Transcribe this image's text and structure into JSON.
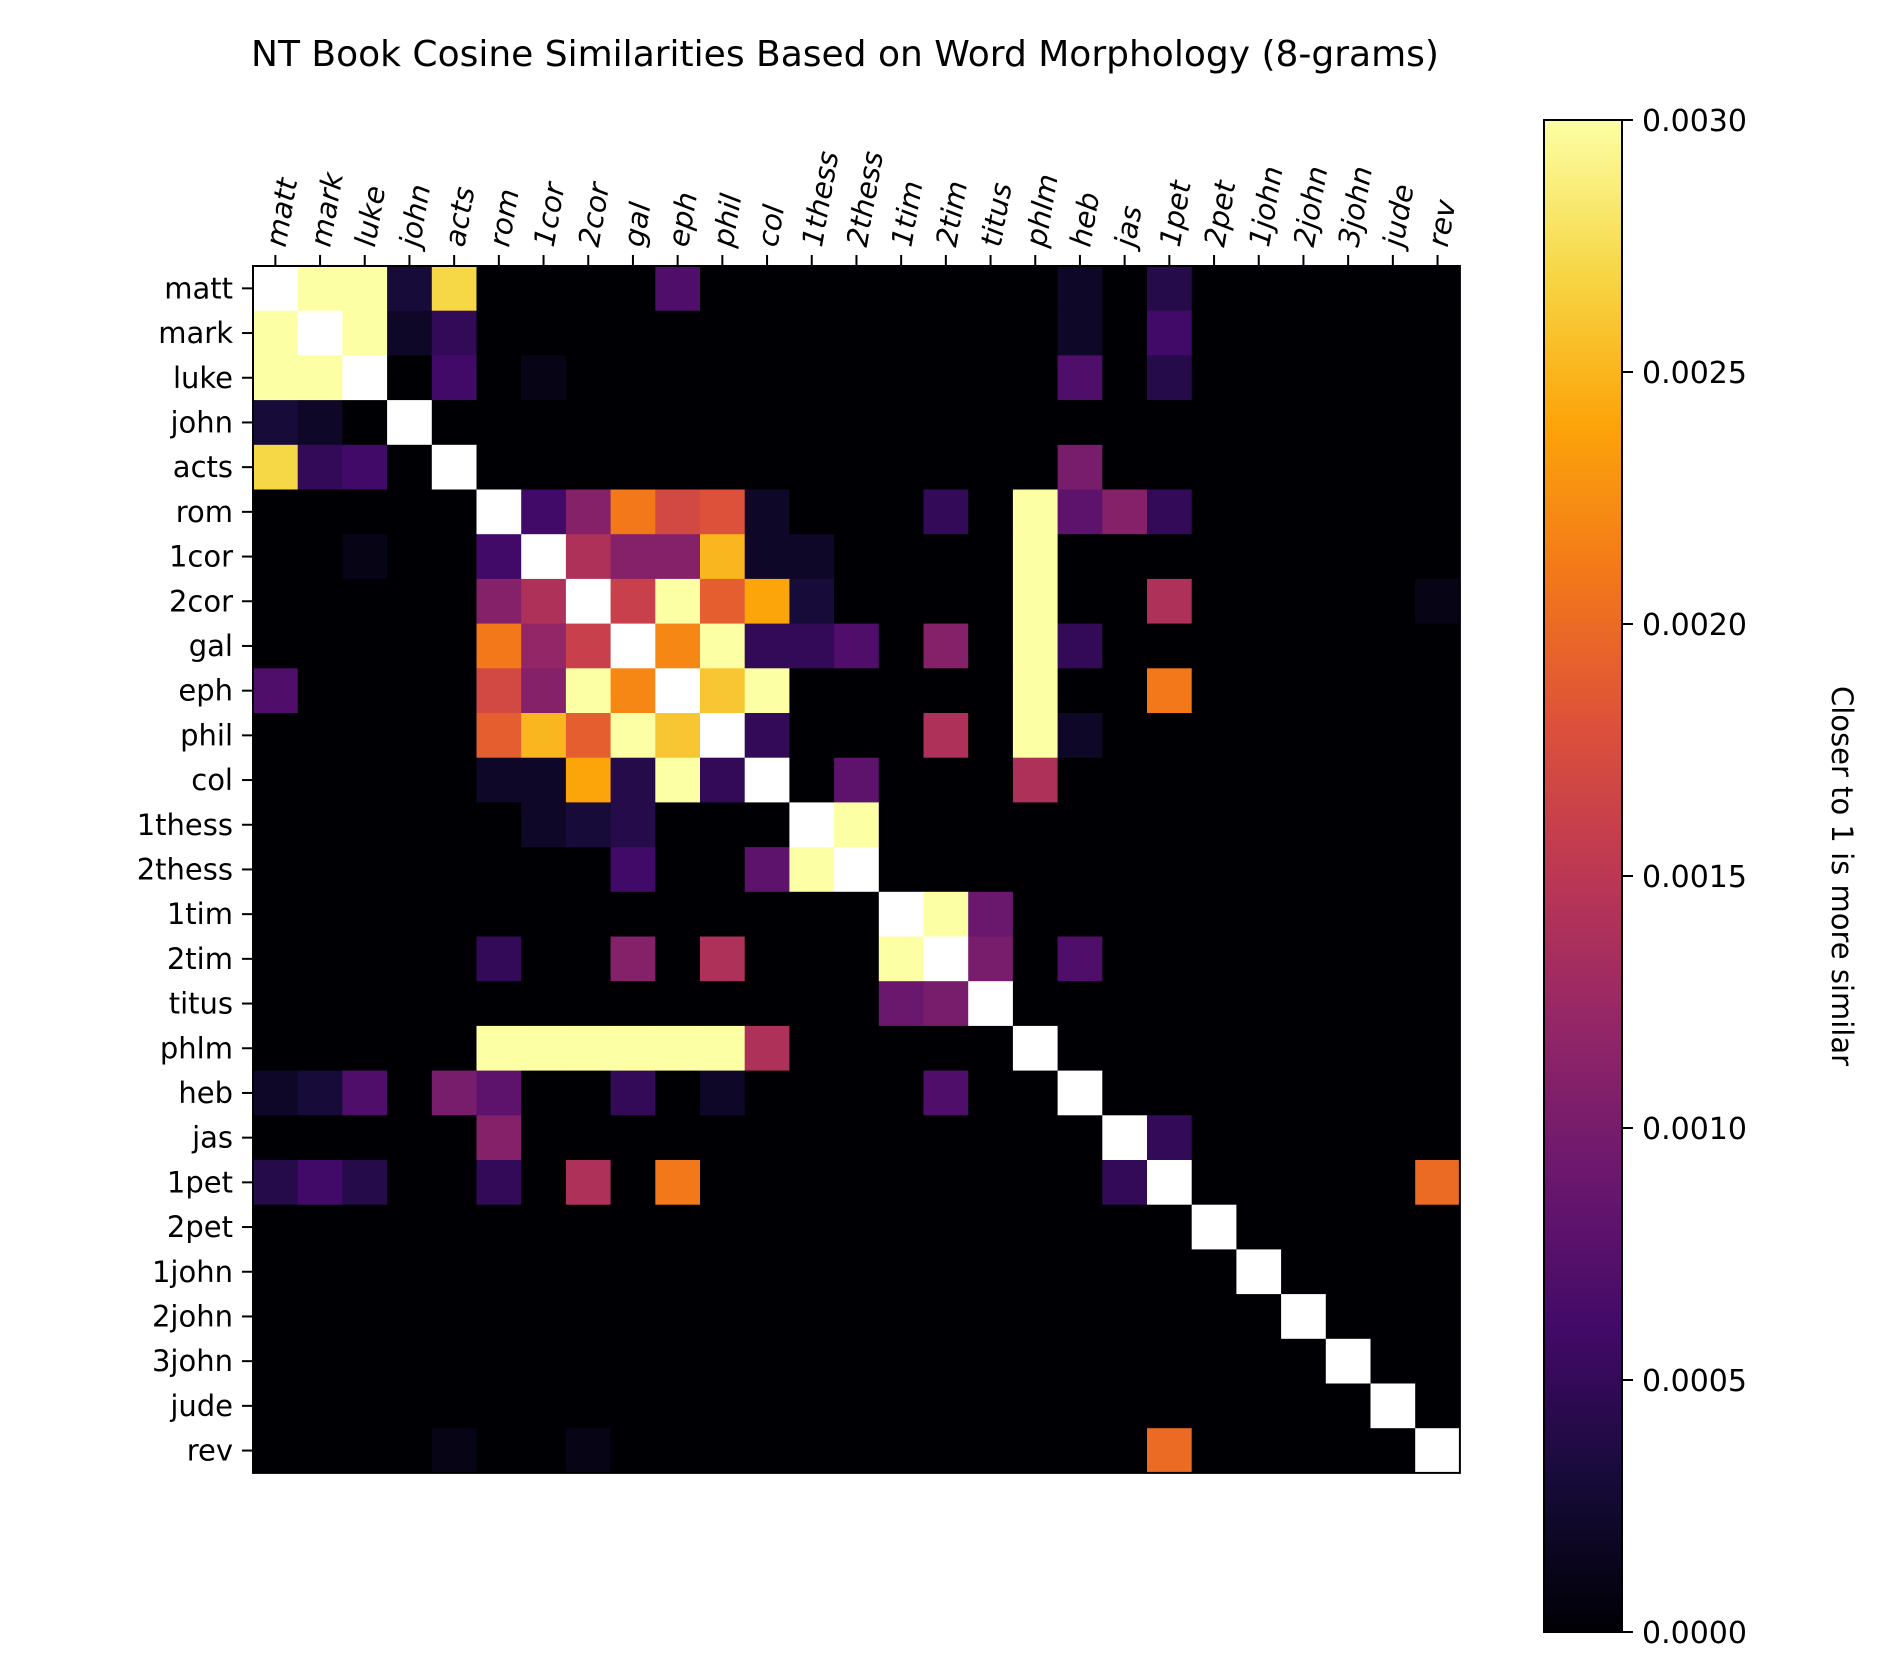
{
  "chart_data": {
    "type": "heatmap",
    "title": "NT Book Cosine Similarities Based on Word Morphology (8-grams)",
    "colorbar_label": "Closer to 1 is more similar",
    "colormap": "inferno",
    "value_range": [
      0,
      0.003
    ],
    "colorbar_ticks": [
      "0.0000",
      "0.0005",
      "0.0010",
      "0.0015",
      "0.0020",
      "0.0025",
      "0.0030"
    ],
    "x_tick_position": "top",
    "x_tick_style": "italic, rotated",
    "books": [
      "matt",
      "mark",
      "luke",
      "john",
      "acts",
      "rom",
      "1cor",
      "2cor",
      "gal",
      "eph",
      "phil",
      "col",
      "1thess",
      "2thess",
      "1tim",
      "2tim",
      "titus",
      "phlm",
      "heb",
      "jas",
      "1pet",
      "2pet",
      "1john",
      "2john",
      "3john",
      "jude",
      "rev"
    ],
    "values": [
      [
        0.01,
        0.003,
        0.003,
        0.0003,
        0.0027,
        0.0,
        0.0,
        0.0,
        0.0,
        0.0007,
        0.0,
        0.0,
        0.0,
        0.0,
        0.0,
        0.0,
        0.0,
        0.0,
        0.0002,
        0.0,
        0.0004,
        0.0,
        0.0,
        0.0,
        0.0,
        0.0,
        0.0
      ],
      [
        0.003,
        0.01,
        0.003,
        0.0002,
        0.0005,
        0.0,
        0.0,
        0.0,
        0.0,
        0.0,
        0.0,
        0.0,
        0.0,
        0.0,
        0.0,
        0.0,
        0.0,
        0.0,
        0.0002,
        0.0,
        0.0006,
        0.0,
        0.0,
        0.0,
        0.0,
        0.0,
        0.0
      ],
      [
        0.003,
        0.003,
        0.01,
        0.0,
        0.0006,
        0.0,
        0.0001,
        0.0,
        0.0,
        0.0,
        0.0,
        0.0,
        0.0,
        0.0,
        0.0,
        0.0,
        0.0,
        0.0,
        0.0007,
        0.0,
        0.0004,
        0.0,
        0.0,
        0.0,
        0.0,
        0.0,
        0.0
      ],
      [
        0.0003,
        0.0002,
        0.0,
        0.01,
        0.0,
        0.0,
        0.0,
        0.0,
        0.0,
        0.0,
        0.0,
        0.0,
        0.0,
        0.0,
        0.0,
        0.0,
        0.0,
        0.0,
        0.0,
        0.0,
        0.0,
        0.0,
        0.0,
        0.0,
        0.0,
        0.0,
        0.0
      ],
      [
        0.0027,
        0.0005,
        0.0006,
        0.0,
        0.01,
        0.0,
        0.0,
        0.0,
        0.0,
        0.0,
        0.0,
        0.0,
        0.0,
        0.0,
        0.0,
        0.0,
        0.0,
        0.0,
        0.001,
        0.0,
        0.0,
        0.0,
        0.0,
        0.0,
        0.0,
        0.0,
        0.0
      ],
      [
        0.0,
        0.0,
        0.0,
        0.0,
        0.0,
        0.01,
        0.0006,
        0.0011,
        0.0021,
        0.0017,
        0.0018,
        0.0002,
        0.0,
        0.0,
        0.0,
        0.0005,
        0.0,
        0.003,
        0.0008,
        0.0011,
        0.0005,
        0.0,
        0.0,
        0.0,
        0.0,
        0.0,
        0.0
      ],
      [
        0.0,
        0.0,
        0.0001,
        0.0,
        0.0,
        0.0006,
        0.01,
        0.0014,
        0.0011,
        0.0011,
        0.0025,
        0.0002,
        0.0002,
        0.0,
        0.0,
        0.0,
        0.0,
        0.003,
        0.0,
        0.0,
        0.0,
        0.0,
        0.0,
        0.0,
        0.0,
        0.0,
        0.0
      ],
      [
        0.0,
        0.0,
        0.0,
        0.0,
        0.0,
        0.0011,
        0.0014,
        0.01,
        0.0016,
        0.003,
        0.0019,
        0.0024,
        0.0003,
        0.0,
        0.0,
        0.0,
        0.0,
        0.003,
        0.0,
        0.0,
        0.0014,
        0.0,
        0.0,
        0.0,
        0.0,
        0.0,
        0.0001
      ],
      [
        0.0,
        0.0,
        0.0,
        0.0,
        0.0,
        0.0021,
        0.0012,
        0.0016,
        0.01,
        0.0022,
        0.003,
        0.0005,
        0.0005,
        0.0007,
        0.0,
        0.0011,
        0.0,
        0.003,
        0.0005,
        0.0,
        0.0,
        0.0,
        0.0,
        0.0,
        0.0,
        0.0,
        0.0
      ],
      [
        0.0007,
        0.0,
        0.0,
        0.0,
        0.0,
        0.0017,
        0.0011,
        0.003,
        0.0022,
        0.01,
        0.0026,
        0.003,
        0.0,
        0.0,
        0.0,
        0.0,
        0.0,
        0.003,
        0.0,
        0.0,
        0.0021,
        0.0,
        0.0,
        0.0,
        0.0,
        0.0,
        0.0
      ],
      [
        0.0,
        0.0,
        0.0,
        0.0,
        0.0,
        0.0019,
        0.0025,
        0.0019,
        0.003,
        0.0026,
        0.01,
        0.0005,
        0.0,
        0.0,
        0.0,
        0.0014,
        0.0,
        0.003,
        0.0002,
        0.0,
        0.0,
        0.0,
        0.0,
        0.0,
        0.0,
        0.0,
        0.0
      ],
      [
        0.0,
        0.0,
        0.0,
        0.0,
        0.0,
        0.0002,
        0.0002,
        0.0024,
        0.0004,
        0.003,
        0.0005,
        0.01,
        0.0,
        0.0008,
        0.0,
        0.0,
        0.0,
        0.0014,
        0.0,
        0.0,
        0.0,
        0.0,
        0.0,
        0.0,
        0.0,
        0.0,
        0.0
      ],
      [
        0.0,
        0.0,
        0.0,
        0.0,
        0.0,
        0.0,
        0.0002,
        0.0003,
        0.0004,
        0.0,
        0.0,
        0.0,
        0.01,
        0.003,
        0.0,
        0.0,
        0.0,
        0.0,
        0.0,
        0.0,
        0.0,
        0.0,
        0.0,
        0.0,
        0.0,
        0.0,
        0.0
      ],
      [
        0.0,
        0.0,
        0.0,
        0.0,
        0.0,
        0.0,
        0.0,
        0.0,
        0.0006,
        0.0,
        0.0,
        0.0008,
        0.003,
        0.01,
        0.0,
        0.0,
        0.0,
        0.0,
        0.0,
        0.0,
        0.0,
        0.0,
        0.0,
        0.0,
        0.0,
        0.0,
        0.0
      ],
      [
        0.0,
        0.0,
        0.0,
        0.0,
        0.0,
        0.0,
        0.0,
        0.0,
        0.0,
        0.0,
        0.0,
        0.0,
        0.0,
        0.0,
        0.01,
        0.003,
        0.0009,
        0.0,
        0.0,
        0.0,
        0.0,
        0.0,
        0.0,
        0.0,
        0.0,
        0.0,
        0.0
      ],
      [
        0.0,
        0.0,
        0.0,
        0.0,
        0.0,
        0.0005,
        0.0,
        0.0,
        0.0011,
        0.0,
        0.0014,
        0.0,
        0.0,
        0.0,
        0.003,
        0.01,
        0.001,
        0.0,
        0.0007,
        0.0,
        0.0,
        0.0,
        0.0,
        0.0,
        0.0,
        0.0,
        0.0
      ],
      [
        0.0,
        0.0,
        0.0,
        0.0,
        0.0,
        0.0,
        0.0,
        0.0,
        0.0,
        0.0,
        0.0,
        0.0,
        0.0,
        0.0,
        0.0009,
        0.001,
        0.01,
        0.0,
        0.0,
        0.0,
        0.0,
        0.0,
        0.0,
        0.0,
        0.0,
        0.0,
        0.0
      ],
      [
        0.0,
        0.0,
        0.0,
        0.0,
        0.0,
        0.003,
        0.003,
        0.003,
        0.003,
        0.003,
        0.003,
        0.0014,
        0.0,
        0.0,
        0.0,
        0.0,
        0.0,
        0.01,
        0.0,
        0.0,
        0.0,
        0.0,
        0.0,
        0.0,
        0.0,
        0.0,
        0.0
      ],
      [
        0.0002,
        0.0003,
        0.0007,
        0.0,
        0.001,
        0.0008,
        0.0,
        0.0,
        0.0005,
        0.0,
        0.0002,
        0.0,
        0.0,
        0.0,
        0.0,
        0.0007,
        0.0,
        0.0,
        0.01,
        0.0,
        0.0,
        0.0,
        0.0,
        0.0,
        0.0,
        0.0,
        0.0
      ],
      [
        0.0,
        0.0,
        0.0,
        0.0,
        0.0,
        0.0011,
        0.0,
        0.0,
        0.0,
        0.0,
        0.0,
        0.0,
        0.0,
        0.0,
        0.0,
        0.0,
        0.0,
        0.0,
        0.0,
        0.01,
        0.0005,
        0.0,
        0.0,
        0.0,
        0.0,
        0.0,
        0.0
      ],
      [
        0.0004,
        0.0006,
        0.0004,
        0.0,
        0.0,
        0.0005,
        0.0,
        0.0014,
        0.0,
        0.0021,
        0.0,
        0.0,
        0.0,
        0.0,
        0.0,
        0.0,
        0.0,
        0.0,
        0.0,
        0.0005,
        0.01,
        0.0,
        0.0,
        0.0,
        0.0,
        0.0,
        0.002
      ],
      [
        0.0,
        0.0,
        0.0,
        0.0,
        0.0,
        0.0,
        0.0,
        0.0,
        0.0,
        0.0,
        0.0,
        0.0,
        0.0,
        0.0,
        0.0,
        0.0,
        0.0,
        0.0,
        0.0,
        0.0,
        0.0,
        0.01,
        0.0,
        0.0,
        0.0,
        0.0,
        0.0
      ],
      [
        0.0,
        0.0,
        0.0,
        0.0,
        0.0,
        0.0,
        0.0,
        0.0,
        0.0,
        0.0,
        0.0,
        0.0,
        0.0,
        0.0,
        0.0,
        0.0,
        0.0,
        0.0,
        0.0,
        0.0,
        0.0,
        0.0,
        0.01,
        0.0,
        0.0,
        0.0,
        0.0
      ],
      [
        0.0,
        0.0,
        0.0,
        0.0,
        0.0,
        0.0,
        0.0,
        0.0,
        0.0,
        0.0,
        0.0,
        0.0,
        0.0,
        0.0,
        0.0,
        0.0,
        0.0,
        0.0,
        0.0,
        0.0,
        0.0,
        0.0,
        0.0,
        0.01,
        0.0,
        0.0,
        0.0
      ],
      [
        0.0,
        0.0,
        0.0,
        0.0,
        0.0,
        0.0,
        0.0,
        0.0,
        0.0,
        0.0,
        0.0,
        0.0,
        0.0,
        0.0,
        0.0,
        0.0,
        0.0,
        0.0,
        0.0,
        0.0,
        0.0,
        0.0,
        0.0,
        0.0,
        0.01,
        0.0,
        0.0
      ],
      [
        0.0,
        0.0,
        0.0,
        0.0,
        0.0,
        0.0,
        0.0,
        0.0,
        0.0,
        0.0,
        0.0,
        0.0,
        0.0,
        0.0,
        0.0,
        0.0,
        0.0,
        0.0,
        0.0,
        0.0,
        0.0,
        0.0,
        0.0,
        0.0,
        0.0,
        0.01,
        0.0
      ],
      [
        0.0,
        0.0,
        0.0,
        0.0,
        0.0001,
        0.0,
        0.0,
        0.0001,
        0.0,
        0.0,
        0.0,
        0.0,
        0.0,
        0.0,
        0.0,
        0.0,
        0.0,
        0.0,
        0.0,
        0.0,
        0.002,
        0.0,
        0.0,
        0.0,
        0.0,
        0.0,
        0.01
      ]
    ]
  }
}
